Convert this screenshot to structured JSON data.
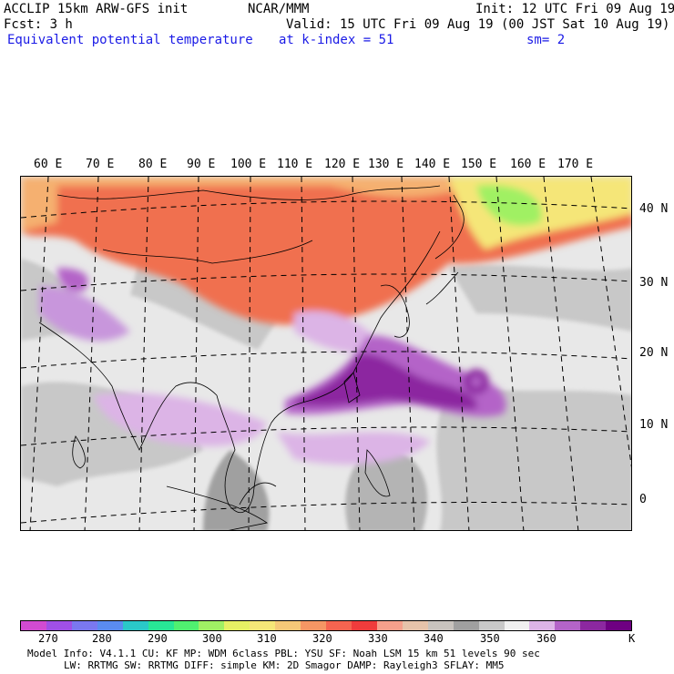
{
  "header": {
    "line1_left": "ACCLIP 15km ARW-GFS init",
    "line1_mid": "NCAR/MMM",
    "line1_right": "Init: 12 UTC Fri 09 Aug 19",
    "line2_left": "Fcst:    3 h",
    "line2_right": "Valid: 15 UTC Fri 09 Aug 19 (00 JST Sat 10 Aug 19)",
    "line3_field": "Equivalent potential temperature",
    "line3_level": "at k-index =  51",
    "line3_smooth": "sm= 2"
  },
  "map": {
    "lon_labels": [
      "60 E",
      "70 E",
      "80 E",
      "90 E",
      "100 E",
      "110 E",
      "120 E",
      "130 E",
      "140 E",
      "150 E",
      "160 E",
      "170 E"
    ],
    "lat_labels": [
      "40 N",
      "30 N",
      "20 N",
      "10 N",
      "0"
    ]
  },
  "colorbar": {
    "colors": [
      "#d24bd2",
      "#a050e6",
      "#7a78f0",
      "#5a8cf0",
      "#2ac8c8",
      "#28e696",
      "#50f070",
      "#a0f064",
      "#e6f064",
      "#f5e678",
      "#f5c878",
      "#f59664",
      "#f56450",
      "#f03c3c",
      "#f5a08c",
      "#e6c3aa",
      "#c8c3be",
      "#a0a0a0",
      "#c8c8c8",
      "#f0f0f0",
      "#dcb4e6",
      "#b464c8",
      "#8c28a0",
      "#6e0082"
    ],
    "ticks": [
      "270",
      "280",
      "290",
      "300",
      "310",
      "320",
      "330",
      "340",
      "350",
      "360"
    ],
    "unit": "K"
  },
  "footer": {
    "line1": "Model Info: V4.1.1    CU: KF       MP: WDM 6class  PBL: YSU       SF: Noah LSM    15 km    51 levels   90 sec",
    "line2": "LW: RRTMG     SW: RRTMG   DIFF: simple KM: 2D Smagor DAMP: Rayleigh3  SFLAY: MM5"
  }
}
